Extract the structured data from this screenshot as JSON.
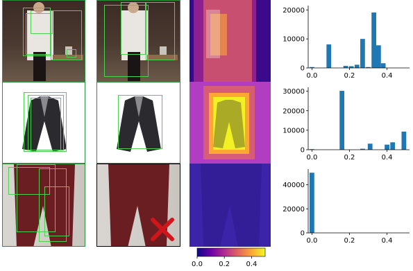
{
  "colors": {
    "bar": "#1f77b4",
    "bbox": "#4bd04f",
    "reject": "#d0151b",
    "colormap": [
      "#0d0887",
      "#6a00a8",
      "#b12a90",
      "#e16462",
      "#fca636",
      "#f0f921"
    ]
  },
  "icons": {
    "reject_mark": "cross-icon"
  },
  "colorbar": {
    "ticks": [
      "0.0",
      "0.2",
      "0.4"
    ],
    "range": [
      0,
      0.5
    ],
    "colormap_name": "plasma"
  },
  "chart_data": [
    {
      "type": "bar",
      "x": [
        0.0,
        0.09,
        0.18,
        0.21,
        0.24,
        0.27,
        0.3,
        0.33,
        0.355,
        0.38
      ],
      "values": [
        300,
        8100,
        700,
        600,
        1100,
        10000,
        300,
        19100,
        7800,
        1600
      ],
      "bar_width": 0.025,
      "xlim": [
        -0.02,
        0.52
      ],
      "ylim": [
        0,
        21500
      ],
      "xticks": [
        "0.0",
        "0.2",
        "0.4"
      ],
      "yticks": [
        "0",
        "10000",
        "20000"
      ],
      "title": "",
      "xlabel": "",
      "ylabel": ""
    },
    {
      "type": "bar",
      "x": [
        0.0,
        0.16,
        0.27,
        0.31,
        0.4,
        0.43,
        0.49
      ],
      "values": [
        300,
        30200,
        500,
        3100,
        2600,
        3800,
        9300
      ],
      "bar_width": 0.025,
      "xlim": [
        -0.02,
        0.52
      ],
      "ylim": [
        0,
        32000
      ],
      "xticks": [
        "0.0",
        "0.2",
        "0.4"
      ],
      "yticks": [
        "0",
        "10000",
        "20000",
        "30000"
      ],
      "title": "",
      "xlabel": "",
      "ylabel": ""
    },
    {
      "type": "bar",
      "x": [
        0.0
      ],
      "values": [
        50000
      ],
      "bar_width": 0.025,
      "xlim": [
        -0.02,
        0.52
      ],
      "ylim": [
        0,
        53000
      ],
      "xticks": [
        "0.0",
        "0.2",
        "0.4"
      ],
      "yticks": [
        "0",
        "20000",
        "40000"
      ],
      "title": "",
      "xlabel": "",
      "ylabel": ""
    }
  ]
}
